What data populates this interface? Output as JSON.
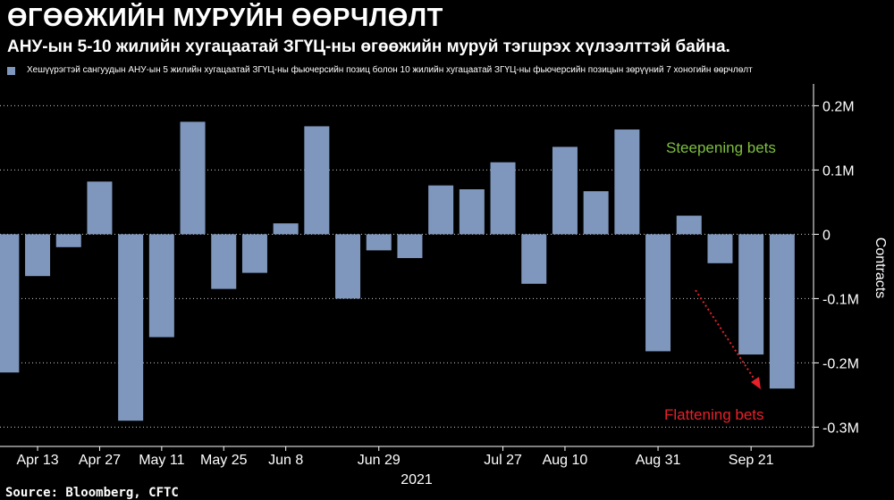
{
  "title": "ӨГӨӨЖИЙН МУРУЙН ӨӨРЧЛӨЛТ",
  "subtitle": "АНУ-ын 5-10 жилийн хугацаатай ЗГҮЦ-ны өгөөжийн муруй тэгшрэх хүлээлттэй байна.",
  "source": "Source: Bloomberg, CFTC",
  "colors": {
    "bar": "#7f97bd",
    "steep": "#7fbf3f",
    "flat": "#e8202a",
    "grid": "#ffffff",
    "background": "#000000"
  },
  "chart_data": {
    "type": "bar",
    "title": "ӨГӨӨЖИЙН МУРУЙН ӨӨРЧЛӨЛТ",
    "subtitle": "АНУ-ын 5-10 жилийн хугацаатай ЗГҮЦ-ны өгөөжийн муруй тэгшрэх хүлээлттэй байна.",
    "ylabel": "Contracts",
    "xlabel": "",
    "year_label": "2021",
    "ylim": [
      -0.33,
      0.22
    ],
    "yticks": [
      0.2,
      0.1,
      0,
      -0.1,
      -0.2,
      -0.3
    ],
    "ytick_labels": [
      "0.2M",
      "0.1M",
      "0",
      "-0.1M",
      "-0.2M",
      "-0.3M"
    ],
    "x_tick_labels": [
      "Apr 13",
      "Apr 27",
      "May 11",
      "May 25",
      "Jun 8",
      "Jun 29",
      "Jul 27",
      "Aug 10",
      "Aug 31",
      "Sep 21"
    ],
    "x_tick_positions": [
      1,
      3,
      5,
      7,
      9,
      12,
      16,
      18,
      21,
      24
    ],
    "grid": true,
    "legend_position": "top-left",
    "series": [
      {
        "name": "Хешүүрэгтэй сангуудын АНУ-ын 5 жилийн хугацаатай ЗГҮЦ-ны фьючерсийн позиц болон 10 жилийн хугацаатай ЗГҮЦ-ны фьючерсийн позицын зөрүүний 7 хоногийн өөрчлөлт",
        "values": [
          -0.215,
          -0.065,
          -0.02,
          0.082,
          -0.29,
          -0.16,
          0.175,
          -0.085,
          -0.06,
          0.017,
          0.168,
          -0.1,
          -0.025,
          -0.037,
          0.076,
          0.07,
          0.112,
          -0.077,
          0.136,
          0.067,
          0.163,
          -0.182,
          0.029,
          -0.045,
          -0.187,
          -0.24
        ]
      }
    ],
    "annotations": [
      {
        "text": "Steepening bets",
        "color": "#7fbf3f"
      },
      {
        "text": "Flattening bets",
        "color": "#e8202a"
      }
    ]
  }
}
